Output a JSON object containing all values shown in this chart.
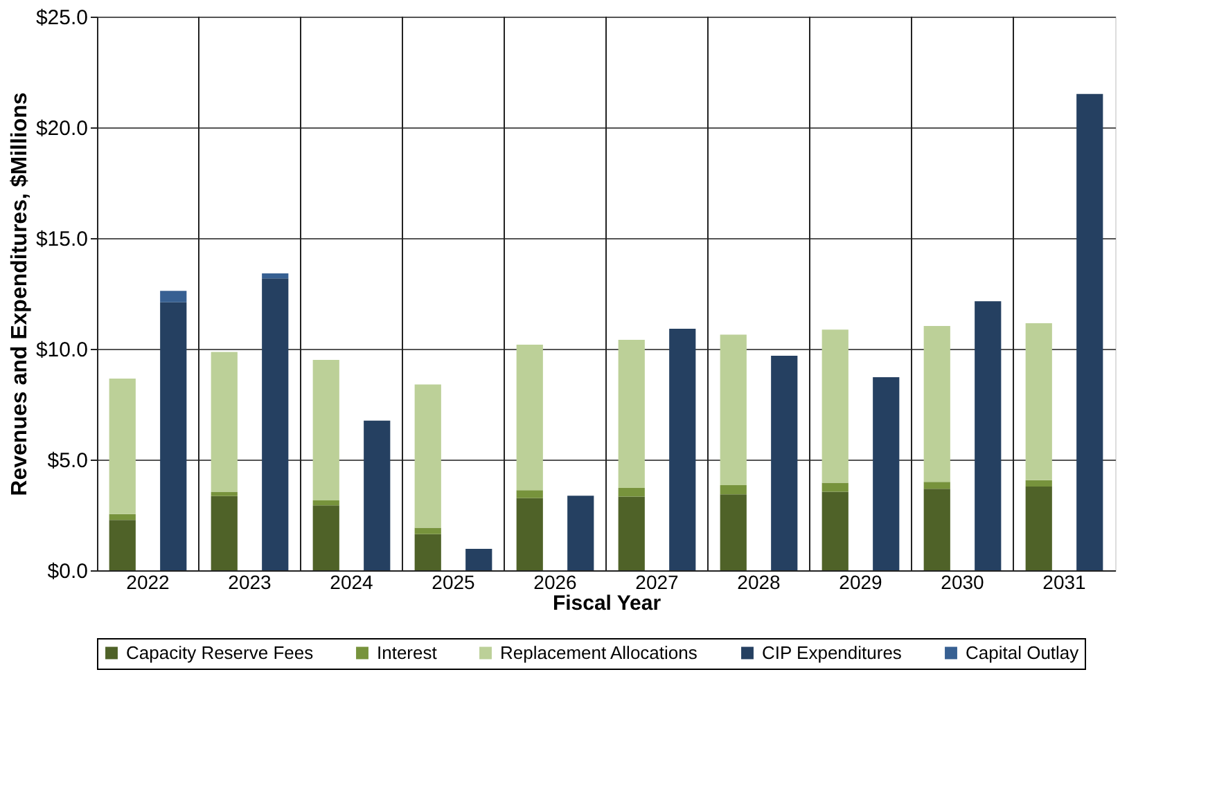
{
  "chart_data": {
    "type": "bar",
    "stacked": true,
    "xlabel": "Fiscal Year",
    "ylabel": "Revenues and Expenditures, $Millions",
    "categories": [
      "2022",
      null,
      "2023",
      null,
      "2024",
      null,
      "2025",
      null,
      "2026",
      null,
      "2027",
      null,
      "2028",
      null,
      "2029",
      null,
      "2030",
      null,
      "2031",
      null
    ],
    "series": [
      {
        "name": "Capacity Reserve Fees",
        "color": "#4f6228",
        "values": [
          2.27,
          null,
          3.35,
          null,
          2.93,
          null,
          1.63,
          null,
          3.26,
          null,
          3.33,
          null,
          3.43,
          null,
          3.55,
          null,
          3.68,
          null,
          3.78,
          null
        ]
      },
      {
        "name": "Interest",
        "color": "#77933c",
        "values": [
          0.27,
          null,
          0.2,
          null,
          0.23,
          null,
          0.29,
          null,
          0.36,
          null,
          0.39,
          null,
          0.41,
          null,
          0.4,
          null,
          0.31,
          null,
          0.29,
          null
        ]
      },
      {
        "name": "Replacement Allocations",
        "color": "#bcd098",
        "values": [
          6.12,
          null,
          6.31,
          null,
          6.34,
          null,
          6.47,
          null,
          6.57,
          null,
          6.69,
          null,
          6.8,
          null,
          6.92,
          null,
          7.04,
          null,
          7.09,
          null
        ]
      },
      {
        "name": "CIP Expenditures",
        "color": "#254061",
        "values": [
          null,
          12.1,
          null,
          13.18,
          null,
          6.76,
          null,
          0.97,
          null,
          3.37,
          null,
          10.91,
          null,
          9.69,
          null,
          8.72,
          null,
          12.15,
          null,
          21.51
        ]
      },
      {
        "name": "Capital Outlay",
        "color": "#376092",
        "values": [
          null,
          0.52,
          null,
          0.23,
          null,
          null,
          null,
          null,
          null,
          null,
          null,
          null,
          null,
          null,
          null,
          null,
          null,
          null,
          null,
          null
        ]
      }
    ],
    "ylim": [
      0,
      25
    ],
    "yticks": [
      {
        "value": 0,
        "label": "$0.0"
      },
      {
        "value": 5,
        "label": "$5.0"
      },
      {
        "value": 10,
        "label": "$10.0"
      },
      {
        "value": 15,
        "label": "$15.0"
      },
      {
        "value": 20,
        "label": "$20.0"
      },
      {
        "value": 25,
        "label": "$25.0"
      }
    ],
    "grid": true,
    "legend": "bottom"
  }
}
